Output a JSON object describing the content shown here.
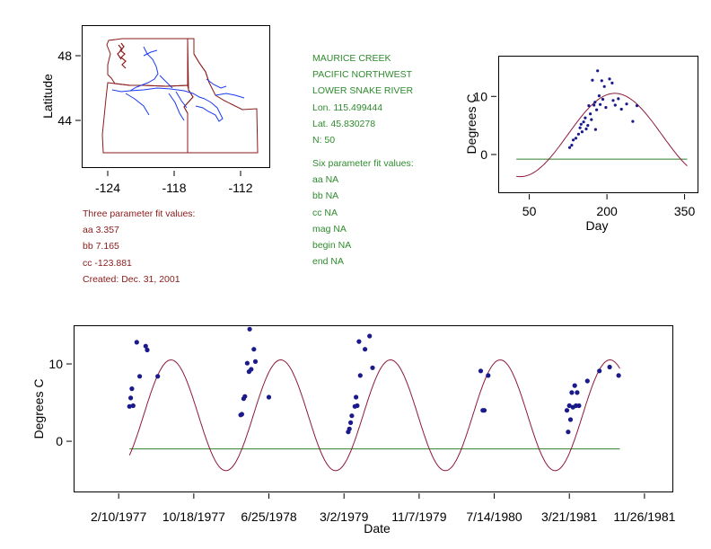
{
  "colors": {
    "frame": "#000000",
    "fit_curve": "#8b1a3a",
    "baseline": "#2e7d2e",
    "points": "#1a1a8b",
    "map_border": "#8b1a1a",
    "rivers": "#1a3aee",
    "text_green": "#2e8b2e",
    "text_red": "#8b1a1a"
  },
  "station": {
    "name": "MAURICE CREEK",
    "region": "PACIFIC NORTHWEST",
    "basin": "LOWER SNAKE RIVER",
    "lon": "Lon. 115.499444",
    "lat": "Lat. 45.830278",
    "n": "N: 50"
  },
  "six_param": {
    "title": "Six parameter fit values:",
    "aa": "aa NA",
    "bb": "bb NA",
    "cc": "cc NA",
    "mag": "mag NA",
    "begin": "begin NA",
    "end": "end NA"
  },
  "three_param": {
    "title": "Three parameter fit values:",
    "aa": "aa 3.357",
    "bb": "bb 7.165",
    "cc": "cc -123.881",
    "created": "Created:   Dec. 31, 2001"
  },
  "chart_data": [
    {
      "id": "map",
      "type": "map",
      "ylabel": "Latitude",
      "xticks": [
        "-124",
        "-118",
        "-112"
      ],
      "yticks": [
        "48",
        "44"
      ],
      "xlim": [
        -126.5,
        -110.5
      ],
      "ylim": [
        41.5,
        49.5
      ]
    },
    {
      "id": "seasonal",
      "type": "scatter",
      "xlabel": "Day",
      "ylabel": "Degrees C",
      "xticks": [
        "50",
        "200",
        "350"
      ],
      "yticks": [
        "10",
        "0"
      ],
      "xlim": [
        -10,
        375
      ],
      "ylim": [
        -6.5,
        17
      ],
      "baseline": -0.8,
      "fit": {
        "aa": 3.357,
        "bb": 7.165,
        "cc": -123.881,
        "period": 365.25
      },
      "points": [
        [
          128,
          1.2
        ],
        [
          132,
          1.6
        ],
        [
          135,
          2.5
        ],
        [
          140,
          2.8
        ],
        [
          145,
          3.5
        ],
        [
          148,
          4.6
        ],
        [
          150,
          5.2
        ],
        [
          152,
          3.9
        ],
        [
          155,
          5.6
        ],
        [
          158,
          6.3
        ],
        [
          160,
          4.4
        ],
        [
          163,
          5.0
        ],
        [
          165,
          8.4
        ],
        [
          168,
          7.0
        ],
        [
          170,
          6.0
        ],
        [
          172,
          12.8
        ],
        [
          175,
          8.5
        ],
        [
          177,
          9.0
        ],
        [
          178,
          4.3
        ],
        [
          180,
          7.7
        ],
        [
          182,
          14.4
        ],
        [
          185,
          10.1
        ],
        [
          187,
          8.6
        ],
        [
          190,
          12.7
        ],
        [
          192,
          9.5
        ],
        [
          195,
          11.7
        ],
        [
          198,
          8.1
        ],
        [
          205,
          13.0
        ],
        [
          210,
          12.3
        ],
        [
          212,
          9.3
        ],
        [
          216,
          8.5
        ],
        [
          222,
          9.6
        ],
        [
          228,
          7.8
        ],
        [
          238,
          8.7
        ],
        [
          250,
          5.7
        ],
        [
          258,
          8.4
        ]
      ]
    },
    {
      "id": "timeseries",
      "type": "scatter",
      "xlabel": "Date",
      "ylabel": "Degrees C",
      "xticks": [
        "2/10/1977",
        "10/18/1977",
        "6/25/1978",
        "3/2/1979",
        "11/7/1979",
        "7/14/1980",
        "3/21/1981",
        "11/26/1981"
      ],
      "yticks": [
        "10",
        "0"
      ],
      "xlim": [
        -150,
        1843
      ],
      "ylim": [
        -6.5,
        15
      ],
      "baseline": -1.0,
      "fit_range": [
        36,
        1668
      ],
      "points": [
        [
          36,
          4.5
        ],
        [
          40,
          5.6
        ],
        [
          44,
          6.8
        ],
        [
          48,
          4.6
        ],
        [
          60,
          12.8
        ],
        [
          70,
          8.4
        ],
        [
          90,
          12.3
        ],
        [
          95,
          11.8
        ],
        [
          130,
          8.4
        ],
        [
          406,
          3.4
        ],
        [
          410,
          3.5
        ],
        [
          416,
          5.5
        ],
        [
          420,
          5.8
        ],
        [
          428,
          10.1
        ],
        [
          434,
          9.0
        ],
        [
          436,
          14.5
        ],
        [
          441,
          9.3
        ],
        [
          450,
          11.9
        ],
        [
          455,
          10.3
        ],
        [
          500,
          5.7
        ],
        [
          764,
          1.2
        ],
        [
          768,
          1.6
        ],
        [
          772,
          2.4
        ],
        [
          776,
          3.3
        ],
        [
          786,
          4.5
        ],
        [
          790,
          5.7
        ],
        [
          794,
          4.6
        ],
        [
          800,
          12.9
        ],
        [
          804,
          8.5
        ],
        [
          820,
          11.9
        ],
        [
          835,
          13.6
        ],
        [
          845,
          9.5
        ],
        [
          1205,
          9.1
        ],
        [
          1212,
          4.0
        ],
        [
          1217,
          4.0
        ],
        [
          1230,
          8.5
        ],
        [
          1492,
          4.0
        ],
        [
          1496,
          1.2
        ],
        [
          1500,
          4.6
        ],
        [
          1504,
          2.8
        ],
        [
          1508,
          6.3
        ],
        [
          1512,
          4.4
        ],
        [
          1518,
          7.2
        ],
        [
          1522,
          4.6
        ],
        [
          1526,
          6.3
        ],
        [
          1532,
          4.6
        ],
        [
          1560,
          7.8
        ],
        [
          1600,
          9.1
        ],
        [
          1634,
          9.6
        ],
        [
          1664,
          8.5
        ]
      ]
    }
  ]
}
